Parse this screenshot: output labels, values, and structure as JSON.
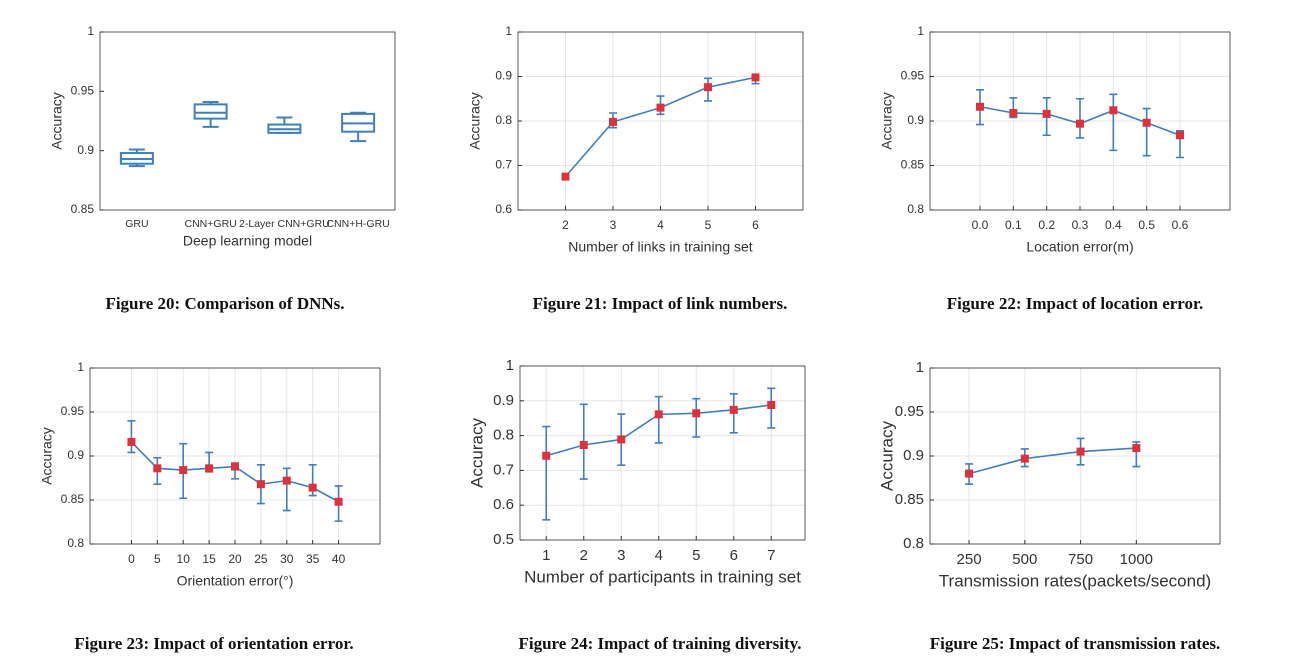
{
  "chart_data": [
    {
      "type": "box",
      "caption": "Figure 20: Comparison of DNNs.",
      "ylabel": "Accuracy",
      "xlabel": "Deep learning model",
      "categories": [
        "GRU",
        "CNN+GRU",
        "2-Layer CNN+GRU",
        "CNN+H-GRU"
      ],
      "min": [
        0.887,
        0.92,
        0.915,
        0.908
      ],
      "q1": [
        0.889,
        0.927,
        0.915,
        0.916
      ],
      "median": [
        0.893,
        0.932,
        0.918,
        0.923
      ],
      "q3": [
        0.898,
        0.939,
        0.922,
        0.931
      ],
      "max": [
        0.901,
        0.941,
        0.928,
        0.932
      ],
      "color": "#3d7fc1",
      "ylim": [
        0.85,
        1
      ],
      "yticks": [
        0.85,
        0.9,
        0.95,
        1
      ],
      "grid": false
    },
    {
      "type": "line",
      "caption": "Figure 21: Impact of link numbers.",
      "ylabel": "Accuracy",
      "xlabel": "Number of links in training set",
      "x": [
        2,
        3,
        4,
        5,
        6
      ],
      "values": [
        0.675,
        0.798,
        0.83,
        0.876,
        0.898
      ],
      "lower": [
        0.672,
        0.785,
        0.815,
        0.845,
        0.884
      ],
      "upper": [
        0.678,
        0.818,
        0.856,
        0.896,
        0.902
      ],
      "color": "#3d7fc1",
      "marker_color": "#e0303a",
      "xlim": [
        1,
        7
      ],
      "xticks": [
        2,
        3,
        4,
        5,
        6
      ],
      "ylim": [
        0.6,
        1
      ],
      "yticks": [
        0.6,
        0.7,
        0.8,
        0.9,
        1
      ],
      "grid": true
    },
    {
      "type": "line",
      "caption": "Figure 22: Impact of location error.",
      "ylabel": "Accuracy",
      "xlabel": "Location error(m)",
      "x": [
        0,
        0.1,
        0.2,
        0.3,
        0.4,
        0.5,
        0.6
      ],
      "values": [
        0.916,
        0.909,
        0.908,
        0.897,
        0.912,
        0.898,
        0.884
      ],
      "lower": [
        0.896,
        0.904,
        0.884,
        0.881,
        0.867,
        0.861,
        0.859
      ],
      "upper": [
        0.935,
        0.926,
        0.926,
        0.925,
        0.93,
        0.914,
        0.889
      ],
      "color": "#3d7fc1",
      "marker_color": "#e0303a",
      "xlim": [
        -0.15,
        0.75
      ],
      "xticks": [
        {
          "value": 0,
          "label": "0.0"
        },
        0.1,
        0.2,
        0.3,
        0.4,
        0.5,
        0.6
      ],
      "ylim": [
        0.8,
        1
      ],
      "yticks": [
        0.8,
        0.85,
        0.9,
        0.95,
        1
      ],
      "grid": true
    },
    {
      "type": "line",
      "caption": "Figure 23: Impact of orientation error.",
      "ylabel": "Accuracy",
      "xlabel": "Orientation error(°)",
      "x": [
        0,
        5,
        10,
        15,
        20,
        25,
        30,
        35,
        40
      ],
      "values": [
        0.916,
        0.886,
        0.884,
        0.886,
        0.888,
        0.868,
        0.872,
        0.864,
        0.848
      ],
      "lower": [
        0.904,
        0.868,
        0.852,
        0.882,
        0.874,
        0.846,
        0.838,
        0.855,
        0.826
      ],
      "upper": [
        0.94,
        0.898,
        0.914,
        0.904,
        0.892,
        0.89,
        0.886,
        0.89,
        0.866
      ],
      "color": "#3d7fc1",
      "marker_color": "#e0303a",
      "xlim": [
        -8,
        48
      ],
      "xticks": [
        0,
        5,
        10,
        15,
        20,
        25,
        30,
        35,
        40
      ],
      "ylim": [
        0.8,
        1
      ],
      "yticks": [
        0.8,
        0.85,
        0.9,
        0.95,
        1
      ],
      "grid": true
    },
    {
      "type": "line",
      "caption": "Figure 24: Impact of training diversity.",
      "ylabel": "Accuracy",
      "xlabel": "Number of participants in training set",
      "x": [
        1,
        2,
        3,
        4,
        5,
        6,
        7
      ],
      "values": [
        0.742,
        0.773,
        0.789,
        0.861,
        0.864,
        0.874,
        0.888
      ],
      "lower": [
        0.558,
        0.675,
        0.715,
        0.779,
        0.796,
        0.808,
        0.822
      ],
      "upper": [
        0.826,
        0.89,
        0.862,
        0.912,
        0.906,
        0.92,
        0.936
      ],
      "color": "#3d7fc1",
      "marker_color": "#e0303a",
      "xlim": [
        0.3,
        7.9
      ],
      "xticks": [
        1,
        2,
        3,
        4,
        5,
        6,
        7
      ],
      "ylim": [
        0.5,
        1
      ],
      "yticks": [
        0.5,
        0.6,
        0.7,
        0.8,
        0.9,
        1
      ],
      "grid": true
    },
    {
      "type": "line",
      "caption": "Figure 25: Impact of transmission rates.",
      "ylabel": "Accuracy",
      "xlabel": "Transmission rates(packets/second)",
      "x": [
        250,
        500,
        750,
        1000
      ],
      "values": [
        0.88,
        0.897,
        0.905,
        0.909
      ],
      "lower": [
        0.868,
        0.888,
        0.89,
        0.888
      ],
      "upper": [
        0.891,
        0.908,
        0.92,
        0.916
      ],
      "color": "#3d7fc1",
      "marker_color": "#e0303a",
      "xlim": [
        75,
        1375
      ],
      "xticks": [
        250,
        500,
        750,
        1000
      ],
      "ylim": [
        0.8,
        1
      ],
      "yticks": [
        0.8,
        0.85,
        0.9,
        0.95,
        1
      ],
      "grid": true
    }
  ]
}
